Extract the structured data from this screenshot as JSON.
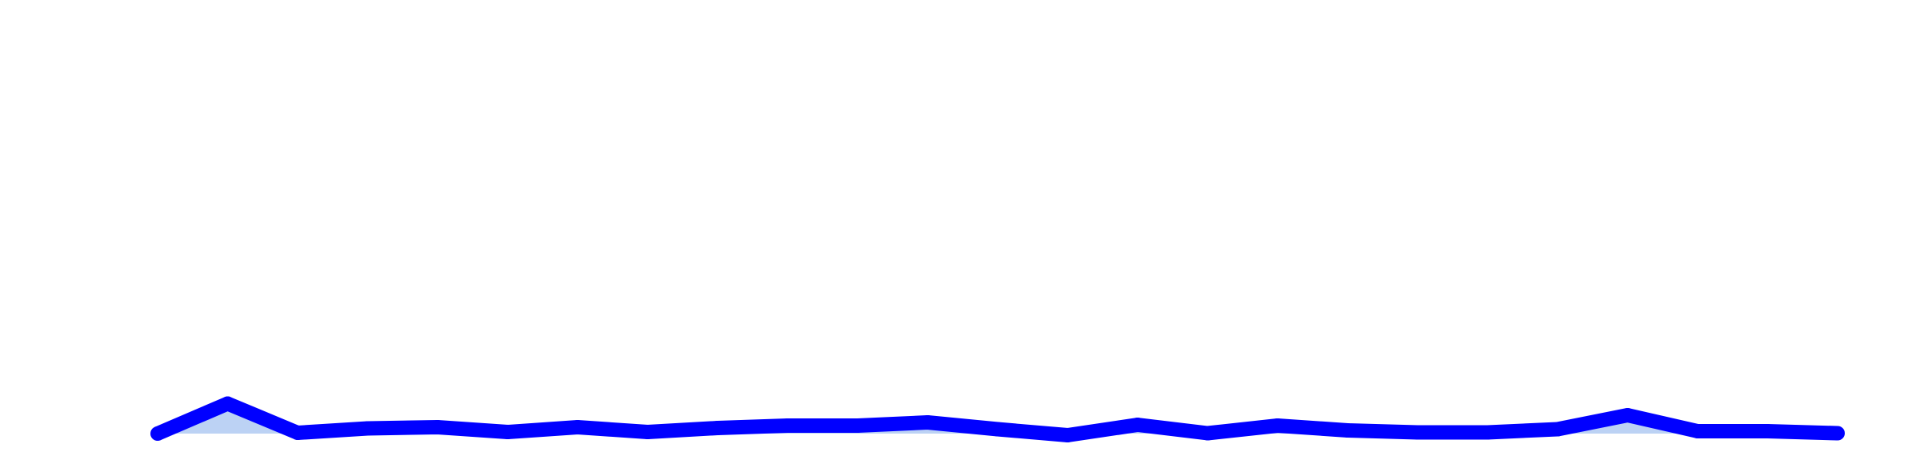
{
  "chart_data": {
    "type": "area",
    "title": "",
    "xlabel": "",
    "ylabel": "",
    "x": [
      1,
      2,
      3,
      4,
      5,
      6,
      7,
      8,
      9,
      10,
      11,
      12,
      13,
      14,
      15,
      16,
      17,
      18,
      19,
      20,
      21,
      22,
      23,
      24,
      25
    ],
    "series": [
      {
        "values": [
          0.0,
          7.5,
          0.2,
          1.3,
          1.6,
          0.4,
          1.6,
          0.4,
          1.4,
          2.0,
          2.0,
          2.8,
          1.1,
          -0.4,
          2.2,
          0.1,
          2.0,
          0.8,
          0.3,
          0.3,
          1.1,
          4.6,
          0.6,
          0.6,
          0.1
        ],
        "color": "#0000ff",
        "fill": "#bcd2f4"
      }
    ],
    "xlim": [
      1,
      25
    ],
    "ylim": [
      -0.5,
      55
    ],
    "grid": false,
    "legend": "none"
  }
}
